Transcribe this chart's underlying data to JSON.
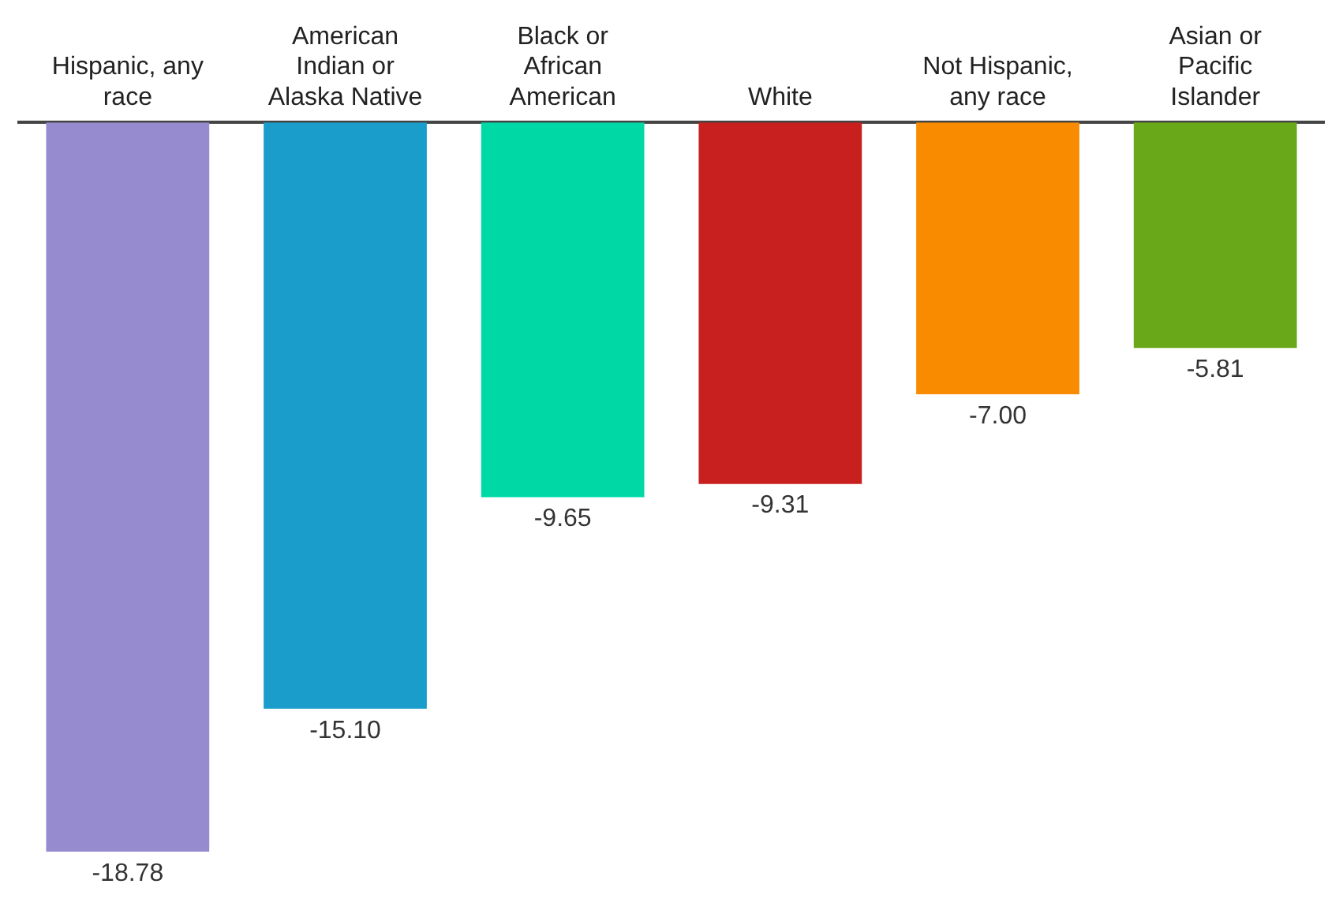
{
  "chart_data": {
    "type": "bar",
    "categories": [
      "Hispanic, any race",
      "American Indian or Alaska Native",
      "Black or African American",
      "White",
      "Not Hispanic, any race",
      "Asian or Pacific Islander"
    ],
    "values": [
      -18.78,
      -15.1,
      -9.65,
      -9.31,
      -7.0,
      -5.81
    ],
    "value_labels": [
      "-18.78",
      "-15.10",
      "-9.65",
      "-9.31",
      "-7.00",
      "-5.81"
    ],
    "colors": [
      "#978bd0",
      "#1a9dcb",
      "#00d9a6",
      "#c81f1f",
      "#f98b00",
      "#69a919"
    ],
    "grid": false,
    "legend": false
  }
}
